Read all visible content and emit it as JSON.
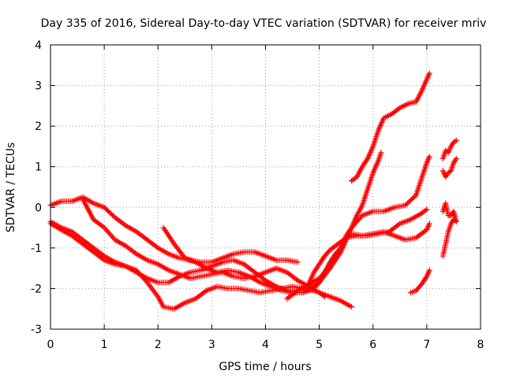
{
  "chart_data": {
    "type": "scatter",
    "title": "Day 335 of 2016, Sidereal Day-to-day VTEC variation (SDTVAR) for receiver mriv",
    "xlabel": "GPS time / hours",
    "ylabel": "SDTVAR / TECUs",
    "xlim": [
      0,
      8
    ],
    "ylim": [
      -3,
      4
    ],
    "xticks": [
      "0",
      "1",
      "2",
      "3",
      "4",
      "5",
      "6",
      "7",
      "8"
    ],
    "yticks": [
      "-3",
      "-2",
      "-1",
      "0",
      "1",
      "2",
      "3",
      "4"
    ],
    "grid": true,
    "marker": "+",
    "color": "#ff0000",
    "series": [
      {
        "points": [
          [
            0.0,
            0.05
          ],
          [
            0.2,
            0.15
          ],
          [
            0.4,
            0.15
          ],
          [
            0.6,
            0.25
          ],
          [
            0.8,
            0.1
          ],
          [
            1.0,
            0.0
          ],
          [
            1.2,
            -0.25
          ],
          [
            1.4,
            -0.45
          ],
          [
            1.6,
            -0.6
          ],
          [
            1.8,
            -0.8
          ],
          [
            2.0,
            -1.0
          ],
          [
            2.2,
            -1.15
          ],
          [
            2.4,
            -1.25
          ],
          [
            2.6,
            -1.3
          ],
          [
            2.8,
            -1.35
          ],
          [
            3.0,
            -1.35
          ],
          [
            3.2,
            -1.25
          ],
          [
            3.4,
            -1.15
          ],
          [
            3.6,
            -1.1
          ],
          [
            3.8,
            -1.1
          ],
          [
            4.0,
            -1.2
          ],
          [
            4.2,
            -1.3
          ],
          [
            4.4,
            -1.3
          ],
          [
            4.6,
            -1.35
          ]
        ]
      },
      {
        "points": [
          [
            0.0,
            -0.4
          ],
          [
            0.2,
            -0.55
          ],
          [
            0.4,
            -0.7
          ],
          [
            0.6,
            -0.9
          ],
          [
            0.8,
            -1.1
          ],
          [
            1.0,
            -1.3
          ],
          [
            1.2,
            -1.4
          ],
          [
            1.4,
            -1.45
          ],
          [
            1.6,
            -1.6
          ],
          [
            1.8,
            -1.75
          ],
          [
            2.0,
            -1.85
          ],
          [
            2.2,
            -1.85
          ],
          [
            2.4,
            -1.7
          ],
          [
            2.6,
            -1.6
          ],
          [
            2.8,
            -1.55
          ],
          [
            3.0,
            -1.45
          ],
          [
            3.2,
            -1.35
          ],
          [
            3.4,
            -1.3
          ],
          [
            3.6,
            -1.4
          ],
          [
            3.8,
            -1.6
          ],
          [
            4.0,
            -1.8
          ],
          [
            4.2,
            -1.95
          ],
          [
            4.4,
            -2.05
          ],
          [
            4.6,
            -2.05
          ],
          [
            4.8,
            -2.0
          ],
          [
            5.0,
            -1.85
          ],
          [
            5.2,
            -1.5
          ],
          [
            5.4,
            -1.1
          ],
          [
            5.5,
            -0.8
          ],
          [
            5.6,
            -0.5
          ],
          [
            5.8,
            -0.2
          ],
          [
            6.0,
            -0.1
          ],
          [
            6.2,
            -0.1
          ],
          [
            6.4,
            0.0
          ],
          [
            6.6,
            0.05
          ],
          [
            6.8,
            0.3
          ],
          [
            6.9,
            0.7
          ],
          [
            7.0,
            1.1
          ],
          [
            7.05,
            1.25
          ]
        ]
      },
      {
        "points": [
          [
            0.0,
            -0.35
          ],
          [
            0.2,
            -0.5
          ],
          [
            0.4,
            -0.6
          ],
          [
            0.6,
            -0.8
          ],
          [
            0.8,
            -1.0
          ],
          [
            1.0,
            -1.2
          ],
          [
            1.2,
            -1.35
          ],
          [
            1.4,
            -1.45
          ],
          [
            1.6,
            -1.55
          ],
          [
            1.8,
            -1.85
          ],
          [
            2.0,
            -2.2
          ],
          [
            2.1,
            -2.45
          ],
          [
            2.3,
            -2.5
          ],
          [
            2.5,
            -2.35
          ],
          [
            2.7,
            -2.25
          ],
          [
            2.9,
            -2.05
          ],
          [
            3.1,
            -1.95
          ],
          [
            3.3,
            -2.0
          ],
          [
            3.5,
            -2.0
          ],
          [
            3.7,
            -2.05
          ],
          [
            3.9,
            -2.1
          ],
          [
            4.1,
            -2.05
          ],
          [
            4.3,
            -2.0
          ],
          [
            4.5,
            -1.95
          ],
          [
            4.7,
            -2.0
          ],
          [
            4.9,
            -2.05
          ],
          [
            5.0,
            -2.1
          ],
          [
            5.2,
            -2.2
          ],
          [
            5.4,
            -2.3
          ],
          [
            5.6,
            -2.45
          ]
        ]
      },
      {
        "points": [
          [
            0.6,
            0.2
          ],
          [
            0.8,
            -0.3
          ],
          [
            1.0,
            -0.5
          ],
          [
            1.2,
            -0.8
          ],
          [
            1.4,
            -0.95
          ],
          [
            1.6,
            -1.15
          ],
          [
            1.8,
            -1.3
          ],
          [
            2.0,
            -1.4
          ],
          [
            2.2,
            -1.55
          ],
          [
            2.4,
            -1.65
          ],
          [
            2.6,
            -1.75
          ],
          [
            2.8,
            -1.7
          ],
          [
            3.0,
            -1.65
          ],
          [
            3.2,
            -1.6
          ],
          [
            3.4,
            -1.7
          ],
          [
            3.6,
            -1.75
          ],
          [
            3.8,
            -1.7
          ],
          [
            4.0,
            -1.6
          ],
          [
            4.2,
            -1.5
          ],
          [
            4.4,
            -1.6
          ],
          [
            4.6,
            -1.8
          ],
          [
            4.8,
            -1.95
          ],
          [
            5.0,
            -2.1
          ],
          [
            5.1,
            -2.2
          ]
        ]
      },
      {
        "points": [
          [
            2.1,
            -0.5
          ],
          [
            2.3,
            -0.9
          ],
          [
            2.5,
            -1.25
          ],
          [
            2.7,
            -1.35
          ],
          [
            2.9,
            -1.5
          ],
          [
            3.1,
            -1.6
          ],
          [
            3.3,
            -1.55
          ],
          [
            3.5,
            -1.6
          ],
          [
            3.7,
            -1.7
          ],
          [
            3.9,
            -1.85
          ],
          [
            4.1,
            -1.95
          ],
          [
            4.3,
            -2.05
          ],
          [
            4.5,
            -2.1
          ],
          [
            4.7,
            -2.1
          ],
          [
            4.9,
            -2.0
          ],
          [
            5.0,
            -1.85
          ],
          [
            5.1,
            -1.6
          ],
          [
            5.2,
            -1.35
          ],
          [
            5.3,
            -1.15
          ],
          [
            5.4,
            -1.0
          ],
          [
            5.5,
            -0.75
          ],
          [
            5.6,
            -0.65
          ],
          [
            5.8,
            -0.7
          ],
          [
            6.0,
            -0.65
          ],
          [
            6.2,
            -0.6
          ],
          [
            6.4,
            -0.7
          ],
          [
            6.6,
            -0.8
          ],
          [
            6.8,
            -0.75
          ],
          [
            7.0,
            -0.55
          ],
          [
            7.05,
            -0.4
          ]
        ]
      },
      {
        "points": [
          [
            4.4,
            -2.25
          ],
          [
            4.6,
            -2.05
          ],
          [
            4.8,
            -1.9
          ],
          [
            5.0,
            -1.75
          ],
          [
            5.2,
            -1.45
          ],
          [
            5.3,
            -1.25
          ],
          [
            5.4,
            -1.0
          ],
          [
            5.5,
            -0.7
          ],
          [
            5.6,
            -0.5
          ],
          [
            5.7,
            -0.2
          ],
          [
            5.8,
            0.05
          ],
          [
            5.9,
            0.45
          ],
          [
            6.0,
            0.85
          ],
          [
            6.1,
            1.15
          ],
          [
            6.15,
            1.35
          ]
        ]
      },
      {
        "points": [
          [
            4.8,
            -1.9
          ],
          [
            4.9,
            -1.6
          ],
          [
            5.0,
            -1.4
          ],
          [
            5.1,
            -1.2
          ],
          [
            5.2,
            -1.05
          ],
          [
            5.3,
            -0.95
          ],
          [
            5.4,
            -0.85
          ],
          [
            5.5,
            -0.75
          ],
          [
            5.7,
            -0.7
          ],
          [
            5.9,
            -0.7
          ],
          [
            6.1,
            -0.65
          ],
          [
            6.3,
            -0.6
          ],
          [
            6.5,
            -0.4
          ],
          [
            6.7,
            -0.3
          ],
          [
            6.9,
            -0.15
          ],
          [
            7.0,
            -0.05
          ]
        ]
      },
      {
        "points": [
          [
            5.6,
            0.65
          ],
          [
            5.7,
            0.75
          ],
          [
            5.8,
            1.0
          ],
          [
            5.9,
            1.2
          ],
          [
            6.0,
            1.5
          ],
          [
            6.1,
            1.9
          ],
          [
            6.2,
            2.2
          ],
          [
            6.35,
            2.3
          ],
          [
            6.5,
            2.45
          ],
          [
            6.65,
            2.55
          ],
          [
            6.8,
            2.6
          ],
          [
            6.9,
            2.85
          ],
          [
            7.0,
            3.15
          ],
          [
            7.05,
            3.3
          ]
        ]
      },
      {
        "points": [
          [
            6.7,
            -2.1
          ],
          [
            6.8,
            -2.05
          ],
          [
            6.9,
            -1.9
          ],
          [
            7.0,
            -1.7
          ],
          [
            7.05,
            -1.55
          ]
        ]
      },
      {
        "points": [
          [
            7.3,
            -1.2
          ],
          [
            7.35,
            -0.9
          ],
          [
            7.4,
            -0.6
          ],
          [
            7.45,
            -0.4
          ],
          [
            7.5,
            -0.3
          ],
          [
            7.55,
            -0.35
          ]
        ]
      },
      {
        "points": [
          [
            7.3,
            -0.1
          ],
          [
            7.35,
            0.1
          ],
          [
            7.4,
            -0.2
          ],
          [
            7.45,
            -0.2
          ],
          [
            7.5,
            -0.1
          ],
          [
            7.55,
            -0.35
          ]
        ]
      },
      {
        "points": [
          [
            7.3,
            0.9
          ],
          [
            7.35,
            0.75
          ],
          [
            7.4,
            0.85
          ],
          [
            7.45,
            0.9
          ],
          [
            7.5,
            1.1
          ],
          [
            7.55,
            1.2
          ]
        ]
      },
      {
        "points": [
          [
            7.3,
            1.2
          ],
          [
            7.35,
            1.4
          ],
          [
            7.4,
            1.35
          ],
          [
            7.45,
            1.5
          ],
          [
            7.5,
            1.6
          ],
          [
            7.55,
            1.65
          ]
        ]
      }
    ]
  }
}
